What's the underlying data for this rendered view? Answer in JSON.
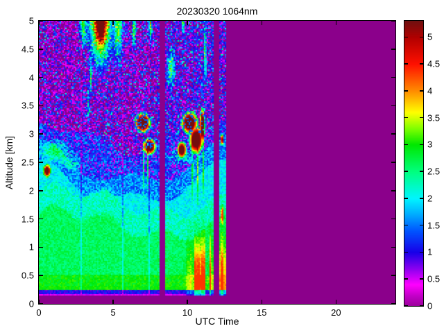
{
  "chart_data": {
    "type": "heatmap",
    "title": "20230320 1064nm",
    "xlabel": "UTC Time",
    "ylabel": "Altitude [km]",
    "x_range": [
      0,
      24
    ],
    "x_ticks": [
      0,
      5,
      10,
      15,
      20
    ],
    "y_range": [
      0,
      5
    ],
    "y_ticks": [
      0,
      0.5,
      1,
      1.5,
      2,
      2.5,
      3,
      3.5,
      4,
      4.5,
      5
    ],
    "colorbar": {
      "range": [
        0,
        5.3
      ],
      "ticks": [
        0,
        0.5,
        1,
        1.5,
        2,
        2.5,
        3,
        3.5,
        4,
        4.5,
        5
      ],
      "stops": [
        {
          "v": 0.0,
          "c": "#9B009B"
        },
        {
          "v": 0.2,
          "c": "#C400C9"
        },
        {
          "v": 0.4,
          "c": "#FF00FF"
        },
        {
          "v": 0.7,
          "c": "#8A00F0"
        },
        {
          "v": 1.0,
          "c": "#1800E8"
        },
        {
          "v": 1.4,
          "c": "#0055FF"
        },
        {
          "v": 1.7,
          "c": "#00AAFF"
        },
        {
          "v": 2.0,
          "c": "#00F5FF"
        },
        {
          "v": 2.5,
          "c": "#00FF7F"
        },
        {
          "v": 3.0,
          "c": "#00E800"
        },
        {
          "v": 3.3,
          "c": "#7FFF00"
        },
        {
          "v": 3.6,
          "c": "#FFFF00"
        },
        {
          "v": 4.0,
          "c": "#FF8C00"
        },
        {
          "v": 4.5,
          "c": "#FF1000"
        },
        {
          "v": 5.0,
          "c": "#B00000"
        },
        {
          "v": 5.3,
          "c": "#701010"
        }
      ]
    },
    "no_data_color": "#8B008B",
    "coverage": {
      "start_utc": 0,
      "end_utc": 12.6,
      "gaps_utc": [
        [
          8.15,
          8.5
        ],
        [
          11.8,
          12.18
        ]
      ]
    },
    "seams_utc": [
      2.82,
      5.62,
      7.42
    ],
    "profile": {
      "surface_bg_top_km": 0.145,
      "magenta_line_top_km": 0.175,
      "magenta_line_value": 0.5,
      "blue_band_top_km": 0.245,
      "blue_band_value": 1.0,
      "bright_green_top_km": 0.52,
      "bright_green_value": 2.95,
      "green_value": 2.62,
      "cyan_value": 2.02,
      "blue_noise_value": 1.25,
      "purple_noise_value": 0.45
    },
    "low_level_streaks": {
      "t_start": 9.7,
      "t_end": 12.6,
      "z_center": 0.5,
      "z_sigma": 0.6,
      "max_amp": 1.9
    },
    "features": [
      {
        "type": "plume",
        "t": 4.15,
        "z": 5.05,
        "rt": 0.62,
        "rz": 0.62,
        "amp": 4.6
      },
      {
        "type": "plume",
        "t": 4.2,
        "z": 4.95,
        "rt": 0.3,
        "rz": 0.42,
        "amp": 1.6
      },
      {
        "type": "gauss",
        "t": 5.35,
        "z": 4.95,
        "rt": 0.28,
        "rz": 0.55,
        "amp": 2.2
      },
      {
        "type": "gauss",
        "t": 2.95,
        "z": 4.95,
        "rt": 0.18,
        "rz": 0.3,
        "amp": 2.5
      },
      {
        "type": "gauss",
        "t": 3.5,
        "z": 4.0,
        "rt": 0.06,
        "rz": 0.25,
        "amp": 2.2
      },
      {
        "type": "gauss",
        "t": 3.35,
        "z": 3.55,
        "rt": 0.05,
        "rz": 0.3,
        "amp": 1.8
      },
      {
        "type": "gauss",
        "t": 6.4,
        "z": 4.85,
        "rt": 0.1,
        "rz": 0.3,
        "amp": 2.3
      },
      {
        "type": "gauss",
        "t": 7.5,
        "z": 4.95,
        "rt": 0.12,
        "rz": 0.3,
        "amp": 2.6
      },
      {
        "type": "gauss",
        "t": 8.9,
        "z": 4.15,
        "rt": 0.22,
        "rz": 0.28,
        "amp": 1.9
      },
      {
        "type": "gauss",
        "t": 9.7,
        "z": 4.95,
        "rt": 0.1,
        "rz": 0.2,
        "amp": 2.0
      },
      {
        "type": "gauss",
        "t": 11.2,
        "z": 4.45,
        "rt": 0.06,
        "rz": 0.45,
        "amp": 2.6
      },
      {
        "type": "gauss",
        "t": 1.15,
        "z": 2.7,
        "rt": 0.85,
        "rz": 0.17,
        "amp": 1.15
      },
      {
        "type": "gauss",
        "t": 2.3,
        "z": 2.5,
        "rt": 0.5,
        "rz": 0.12,
        "amp": 0.9
      },
      {
        "type": "gauss",
        "t": 9.6,
        "z": 2.6,
        "rt": 0.9,
        "rz": 0.12,
        "amp": 0.95
      },
      {
        "type": "blob",
        "t": 7.0,
        "z": 3.2,
        "rt": 0.5,
        "rz": 0.16
      },
      {
        "type": "blob",
        "t": 7.45,
        "z": 2.78,
        "rt": 0.38,
        "rz": 0.13
      },
      {
        "type": "blob",
        "t": 0.55,
        "z": 2.35,
        "rt": 0.22,
        "rz": 0.1
      },
      {
        "type": "blob",
        "t": 10.15,
        "z": 3.2,
        "rt": 0.5,
        "rz": 0.18
      },
      {
        "type": "blob",
        "t": 10.6,
        "z": 2.9,
        "rt": 0.42,
        "rz": 0.22
      },
      {
        "type": "blob",
        "t": 9.62,
        "z": 2.72,
        "rt": 0.28,
        "rz": 0.13
      },
      {
        "type": "blob",
        "t": 11.0,
        "z": 3.15,
        "rt": 0.15,
        "rz": 0.28
      },
      {
        "type": "blob",
        "t": 12.33,
        "z": 2.9,
        "rt": 0.07,
        "rz": 0.1
      },
      {
        "type": "gauss",
        "t": 12.35,
        "z": 1.58,
        "rt": 0.08,
        "rz": 0.12,
        "amp": 3.6
      },
      {
        "type": "gauss",
        "t": 7.05,
        "z": 2.5,
        "rt": 0.05,
        "rz": 0.45,
        "amp": 1.5
      },
      {
        "type": "gauss",
        "t": 7.35,
        "z": 2.45,
        "rt": 0.05,
        "rz": 0.4,
        "amp": 1.5
      },
      {
        "type": "gauss",
        "t": 10.35,
        "z": 2.4,
        "rt": 0.05,
        "rz": 0.5,
        "amp": 1.6
      },
      {
        "type": "gauss",
        "t": 10.7,
        "z": 2.35,
        "rt": 0.05,
        "rz": 0.45,
        "amp": 1.6
      },
      {
        "type": "gauss",
        "t": 11.05,
        "z": 2.5,
        "rt": 0.04,
        "rz": 0.5,
        "amp": 1.5
      }
    ]
  }
}
